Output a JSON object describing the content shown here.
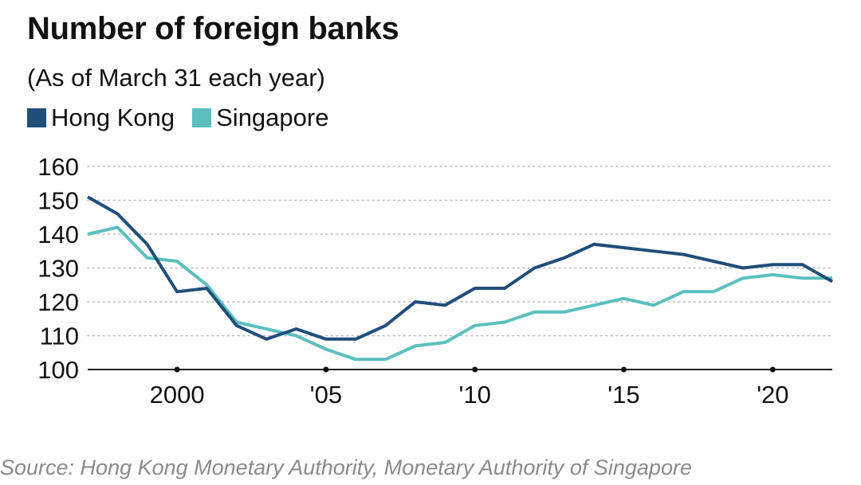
{
  "chart_data": {
    "type": "line",
    "title": "Number of foreign banks",
    "subtitle": "(As of March 31 each year)",
    "x": [
      1997,
      1998,
      1999,
      2000,
      2001,
      2002,
      2003,
      2004,
      2005,
      2006,
      2007,
      2008,
      2009,
      2010,
      2011,
      2012,
      2013,
      2014,
      2015,
      2016,
      2017,
      2018,
      2019,
      2020,
      2021,
      2022
    ],
    "series": [
      {
        "name": "Hong Kong",
        "color": "#1f4e79",
        "values": [
          151,
          146,
          137,
          123,
          124,
          113,
          109,
          112,
          109,
          109,
          113,
          120,
          119,
          124,
          124,
          130,
          133,
          137,
          136,
          135,
          134,
          132,
          130,
          131,
          131,
          126
        ]
      },
      {
        "name": "Singapore",
        "color": "#5bbfbf",
        "values": [
          140,
          142,
          133,
          132,
          125,
          114,
          112,
          110,
          106,
          103,
          103,
          107,
          108,
          113,
          114,
          117,
          117,
          119,
          121,
          119,
          123,
          123,
          127,
          128,
          127,
          127
        ]
      }
    ],
    "xlim": [
      1997,
      2022
    ],
    "ylim": [
      100,
      160
    ],
    "yticks": [
      100,
      110,
      120,
      130,
      140,
      150,
      160
    ],
    "xticks": [
      {
        "value": 2000,
        "label": "2000"
      },
      {
        "value": 2005,
        "label": "'05"
      },
      {
        "value": 2010,
        "label": "'10"
      },
      {
        "value": 2015,
        "label": "'15"
      },
      {
        "value": 2020,
        "label": "'20"
      }
    ],
    "grid": true,
    "legend_position": "top-left",
    "source": "Source: Hong Kong Monetary Authority, Monetary Authority of Singapore"
  }
}
